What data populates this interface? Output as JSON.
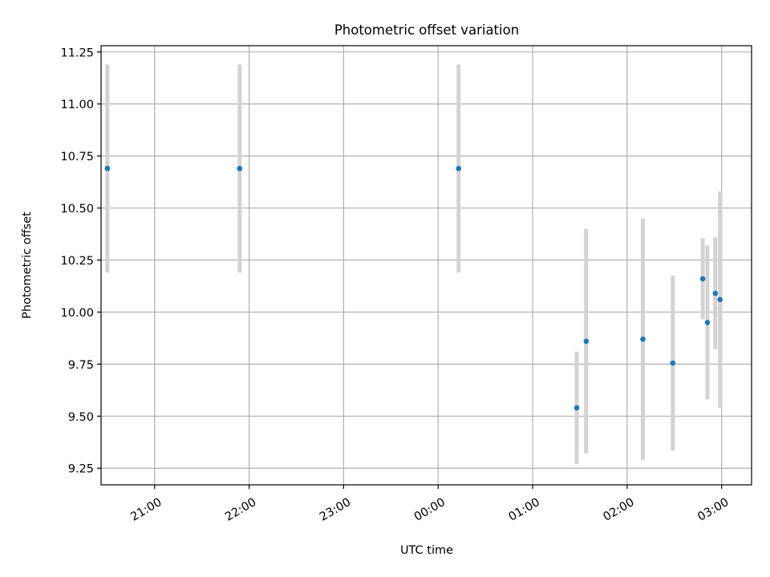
{
  "chart_data": {
    "type": "scatter",
    "title": "Photometric offset variation",
    "xlabel": "UTC time",
    "ylabel": "Photometric offset",
    "x_tick_labels": [
      "21:00",
      "22:00",
      "23:00",
      "00:00",
      "01:00",
      "02:00",
      "03:00"
    ],
    "y_ticks": [
      9.25,
      9.5,
      9.75,
      10.0,
      10.25,
      10.5,
      10.75,
      11.0,
      11.25
    ],
    "y_tick_labels": [
      "9.25",
      "9.50",
      "9.75",
      "10.00",
      "10.25",
      "10.50",
      "10.75",
      "11.00",
      "11.25"
    ],
    "ylim": [
      9.17,
      11.28
    ],
    "xlim": [
      "20:26",
      "03:19"
    ],
    "grid": true,
    "points": [
      {
        "x": "20:30",
        "y": 10.69,
        "err": 0.5
      },
      {
        "x": "21:54",
        "y": 10.69,
        "err": 0.5
      },
      {
        "x": "00:13",
        "y": 10.69,
        "err": 0.5
      },
      {
        "x": "01:28",
        "y": 9.54,
        "err": 0.27
      },
      {
        "x": "01:34",
        "y": 9.86,
        "err": 0.54
      },
      {
        "x": "02:10",
        "y": 9.87,
        "err": 0.58
      },
      {
        "x": "02:29",
        "y": 9.755,
        "err": 0.42
      },
      {
        "x": "02:48",
        "y": 10.16,
        "err": 0.195
      },
      {
        "x": "02:51",
        "y": 9.95,
        "err": 0.37
      },
      {
        "x": "02:56",
        "y": 10.09,
        "err": 0.27
      },
      {
        "x": "02:59",
        "y": 10.06,
        "err": 0.52
      }
    ],
    "colors": {
      "marker": "#1f77b4",
      "errorbar": "#d3d3d3",
      "grid": "#b0b0b0"
    }
  }
}
